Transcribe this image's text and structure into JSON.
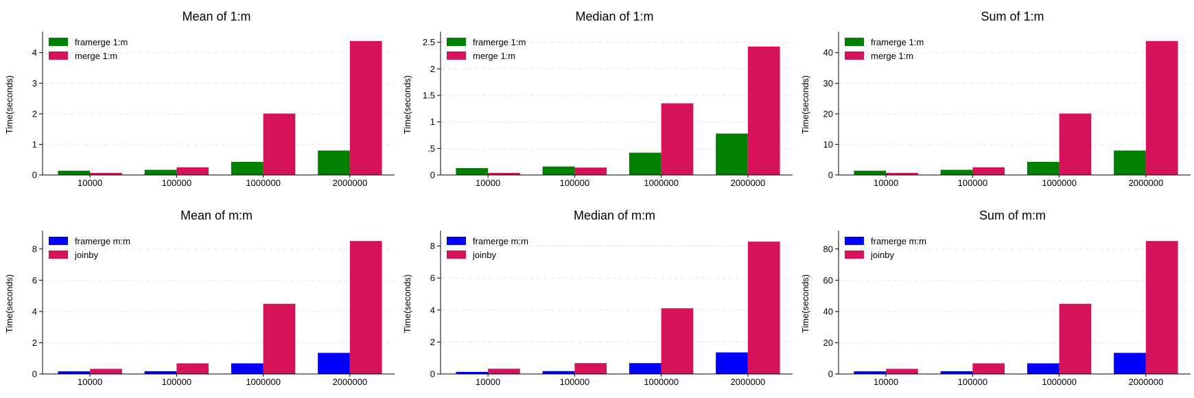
{
  "chart_data": [
    {
      "type": "bar",
      "title": "Mean of 1:m",
      "xlabel": "",
      "ylabel": "Time(seconds)",
      "categories": [
        "10000",
        "100000",
        "1000000",
        "2000000"
      ],
      "ylim": [
        0,
        4.6
      ],
      "yticks": [
        0,
        1,
        2,
        3,
        4
      ],
      "ytick_labels": [
        "0",
        "1",
        "2",
        "3",
        "4"
      ],
      "grid": true,
      "legend": "top-left",
      "series": [
        {
          "name": "framerge 1:m",
          "color": "#008000",
          "values": [
            0.14,
            0.17,
            0.43,
            0.8
          ]
        },
        {
          "name": "merge 1:m",
          "color": "#d6135a",
          "values": [
            0.07,
            0.25,
            2.01,
            4.38
          ]
        }
      ]
    },
    {
      "type": "bar",
      "title": "Median of 1:m",
      "xlabel": "",
      "ylabel": "Time(seconds)",
      "categories": [
        "10000",
        "100000",
        "1000000",
        "2000000"
      ],
      "ylim": [
        0,
        2.65
      ],
      "yticks": [
        0,
        0.5,
        1,
        1.5,
        2,
        2.5
      ],
      "ytick_labels": [
        "0",
        ".5",
        "1",
        "1.5",
        "2",
        "2.5"
      ],
      "grid": true,
      "legend": "top-left",
      "series": [
        {
          "name": "framerge 1:m",
          "color": "#008000",
          "values": [
            0.13,
            0.16,
            0.42,
            0.78
          ]
        },
        {
          "name": "merge 1:m",
          "color": "#d6135a",
          "values": [
            0.04,
            0.14,
            1.35,
            2.42
          ]
        }
      ]
    },
    {
      "type": "bar",
      "title": "Sum of 1:m",
      "xlabel": "",
      "ylabel": "Time(seconds)",
      "categories": [
        "10000",
        "100000",
        "1000000",
        "2000000"
      ],
      "ylim": [
        0,
        46
      ],
      "yticks": [
        0,
        10,
        20,
        30,
        40
      ],
      "ytick_labels": [
        "0",
        "10",
        "20",
        "30",
        "40"
      ],
      "grid": true,
      "legend": "top-left",
      "series": [
        {
          "name": "framerge 1:m",
          "color": "#008000",
          "values": [
            1.4,
            1.7,
            4.3,
            8.0
          ]
        },
        {
          "name": "merge 1:m",
          "color": "#d6135a",
          "values": [
            0.7,
            2.5,
            20.1,
            43.8
          ]
        }
      ]
    },
    {
      "type": "bar",
      "title": "Mean of m:m",
      "xlabel": "",
      "ylabel": "Time(seconds)",
      "categories": [
        "10000",
        "100000",
        "1000000",
        "2000000"
      ],
      "ylim": [
        0,
        9.0
      ],
      "yticks": [
        0,
        2,
        4,
        6,
        8
      ],
      "ytick_labels": [
        "0",
        "2",
        "4",
        "6",
        "8"
      ],
      "grid": true,
      "legend": "top-left",
      "series": [
        {
          "name": "framerge m:m",
          "color": "#0000ff",
          "values": [
            0.17,
            0.18,
            0.68,
            1.35
          ]
        },
        {
          "name": "joinby",
          "color": "#d6135a",
          "values": [
            0.33,
            0.68,
            4.49,
            8.51
          ]
        }
      ]
    },
    {
      "type": "bar",
      "title": "Median of m:m",
      "xlabel": "",
      "ylabel": "Time(seconds)",
      "categories": [
        "10000",
        "100000",
        "1000000",
        "2000000"
      ],
      "ylim": [
        0,
        8.8
      ],
      "yticks": [
        0,
        2,
        4,
        6,
        8
      ],
      "ytick_labels": [
        "0",
        "2",
        "4",
        "6",
        "8"
      ],
      "grid": true,
      "legend": "top-left",
      "series": [
        {
          "name": "framerge m:m",
          "color": "#0000ff",
          "values": [
            0.13,
            0.18,
            0.68,
            1.35
          ]
        },
        {
          "name": "joinby",
          "color": "#d6135a",
          "values": [
            0.33,
            0.68,
            4.11,
            8.28
          ]
        }
      ]
    },
    {
      "type": "bar",
      "title": "Sum of m:m",
      "xlabel": "",
      "ylabel": "Time(seconds)",
      "categories": [
        "10000",
        "100000",
        "1000000",
        "2000000"
      ],
      "ylim": [
        0,
        90
      ],
      "yticks": [
        0,
        20,
        40,
        60,
        80
      ],
      "ytick_labels": [
        "0",
        "20",
        "40",
        "60",
        "80"
      ],
      "grid": true,
      "legend": "top-left",
      "series": [
        {
          "name": "framerge m:m",
          "color": "#0000ff",
          "values": [
            1.7,
            1.8,
            6.8,
            13.5
          ]
        },
        {
          "name": "joinby",
          "color": "#d6135a",
          "values": [
            3.3,
            6.8,
            44.9,
            85.1
          ]
        }
      ]
    }
  ]
}
